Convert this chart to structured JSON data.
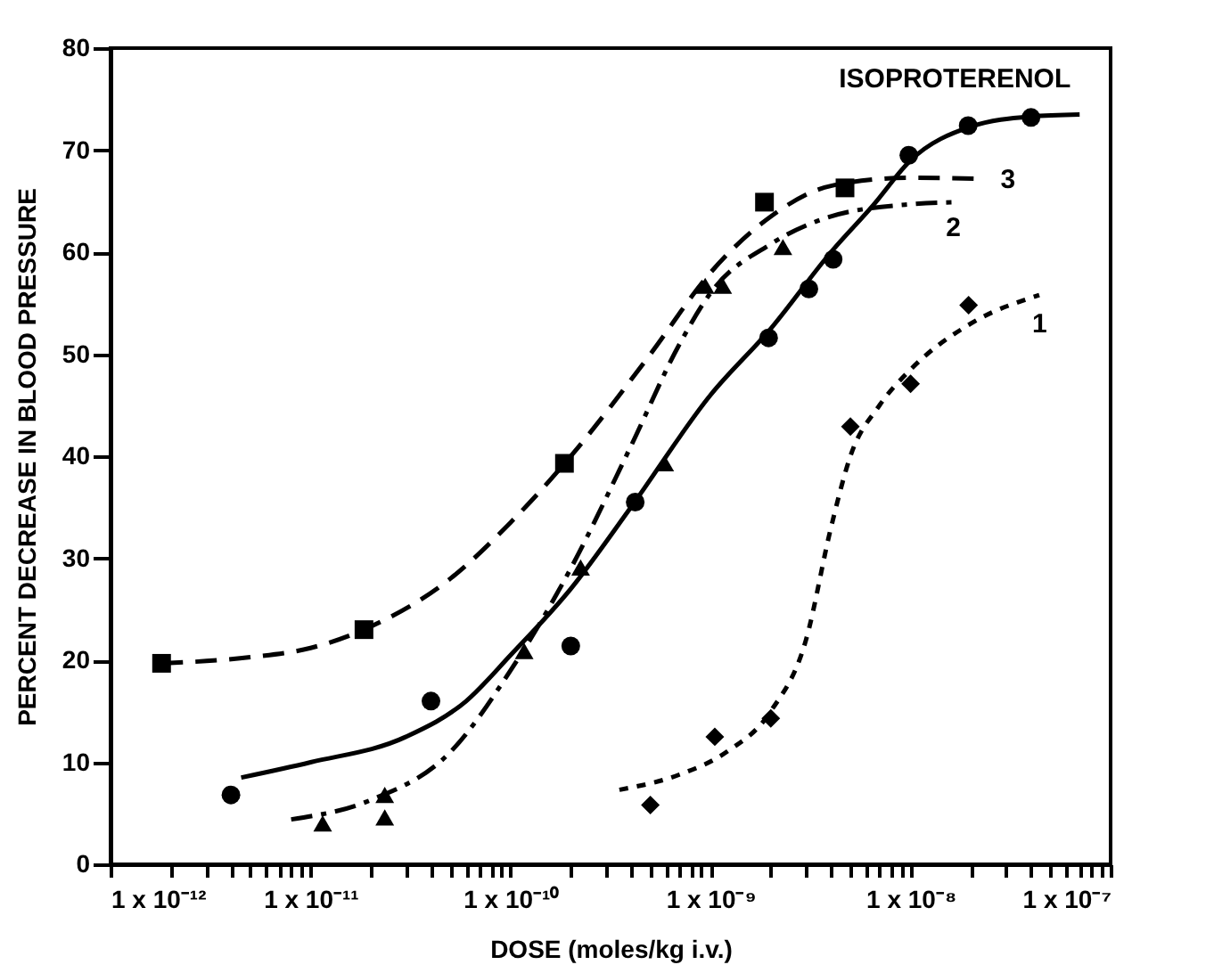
{
  "chart_data": {
    "type": "scatter",
    "xlabel": "DOSE (moles/kg i.v.)",
    "ylabel": "PERCENT DECREASE IN BLOOD PRESSURE",
    "log": "x",
    "xlim": [
      1e-12,
      1e-07
    ],
    "xticks": [
      {
        "value": 1e-12,
        "label": "1 x 10⁻¹²"
      },
      {
        "value": 1e-11,
        "label": "1 x 10⁻¹¹"
      },
      {
        "value": 1e-10,
        "label": "1 x 10⁻¹⁰"
      },
      {
        "value": 1e-09,
        "label": "1 x 10⁻⁹"
      },
      {
        "value": 1e-08,
        "label": "1 x 10⁻⁸"
      },
      {
        "value": 1e-07,
        "label": "1 x 10⁻⁷"
      },
      {
        "value": 2e-12,
        "label": null
      },
      {
        "value": 3e-12,
        "label": null
      },
      {
        "value": 4e-12,
        "label": null
      },
      {
        "value": 5e-12,
        "label": null
      },
      {
        "value": 6e-12,
        "label": null
      },
      {
        "value": 7e-12,
        "label": null
      },
      {
        "value": 8e-12,
        "label": null
      },
      {
        "value": 9e-12,
        "label": null
      },
      {
        "value": 2e-11,
        "label": null
      },
      {
        "value": 3e-11,
        "label": null
      },
      {
        "value": 4e-11,
        "label": null
      },
      {
        "value": 5e-11,
        "label": null
      },
      {
        "value": 6e-11,
        "label": null
      },
      {
        "value": 7e-11,
        "label": null
      },
      {
        "value": 8e-11,
        "label": null
      },
      {
        "value": 9e-11,
        "label": null
      },
      {
        "value": 2e-10,
        "label": null
      },
      {
        "value": 3e-10,
        "label": null
      },
      {
        "value": 4e-10,
        "label": null
      },
      {
        "value": 5e-10,
        "label": null
      },
      {
        "value": 6e-10,
        "label": null
      },
      {
        "value": 7e-10,
        "label": null
      },
      {
        "value": 8e-10,
        "label": null
      },
      {
        "value": 9e-10,
        "label": null
      },
      {
        "value": 2e-09,
        "label": null
      },
      {
        "value": 3e-09,
        "label": null
      },
      {
        "value": 4e-09,
        "label": null
      },
      {
        "value": 5e-09,
        "label": null
      },
      {
        "value": 6e-09,
        "label": null
      },
      {
        "value": 7e-09,
        "label": null
      },
      {
        "value": 8e-09,
        "label": null
      },
      {
        "value": 9e-09,
        "label": null
      },
      {
        "value": 2e-08,
        "label": null
      },
      {
        "value": 3e-08,
        "label": null
      },
      {
        "value": 4e-08,
        "label": null
      },
      {
        "value": 5e-08,
        "label": null
      },
      {
        "value": 6e-08,
        "label": null
      },
      {
        "value": 7e-08,
        "label": null
      },
      {
        "value": 8e-08,
        "label": null
      },
      {
        "value": 9e-08,
        "label": null
      }
    ],
    "ylim": [
      0,
      80
    ],
    "yticks": [
      0,
      10,
      20,
      30,
      40,
      50,
      60,
      70,
      80
    ],
    "series": [
      {
        "marker": "circle",
        "color": "#000000",
        "x": [
          4e-12,
          4e-11,
          2e-10,
          4.2e-10,
          1.95e-09,
          3.1e-09,
          4.1e-09,
          9.8e-09,
          1.94e-08,
          4e-08
        ],
        "values": [
          6.8,
          16,
          21.4,
          35.5,
          51.6,
          56.4,
          59.3,
          69.5,
          72.4,
          73.2
        ]
      },
      {
        "marker": "square",
        "color": "#000000",
        "x": [
          1.8e-12,
          1.85e-11,
          1.86e-10,
          1.86e-09,
          4.7e-09
        ],
        "values": [
          19.7,
          23,
          39.3,
          64.9,
          66.3
        ]
      },
      {
        "marker": "triangle",
        "color": "#000000",
        "x": [
          1.15e-11,
          2.35e-11,
          2.35e-11,
          1.17e-10,
          2.24e-10,
          5.9e-10,
          9.4e-10,
          1.15e-09,
          2.3e-09
        ],
        "values": [
          4,
          6.8,
          4.6,
          20.9,
          29.1,
          39.3,
          56.7,
          56.7,
          60.5
        ]
      },
      {
        "marker": "diamond",
        "color": "#000000",
        "x": [
          5e-10,
          1.05e-09,
          2e-09,
          5e-09,
          1e-08,
          1.95e-08
        ],
        "values": [
          5.8,
          12.5,
          14.3,
          42.9,
          47.1,
          54.8
        ]
      },
      {
        "type": "line",
        "name": "ISOPROTERENOL",
        "line_style": "solid",
        "color": "#000000",
        "x": [
          4.5e-12,
          1e-11,
          3e-11,
          6e-11,
          1e-10,
          2e-10,
          4e-10,
          1e-09,
          2e-09,
          4e-09,
          6.5e-09,
          1e-08,
          2e-08,
          4e-08,
          7e-08
        ],
        "values": [
          8.5,
          10,
          12.5,
          16,
          20.5,
          27,
          35,
          46,
          52.5,
          60,
          64.6,
          69,
          72.3,
          73.3,
          73.5
        ]
      },
      {
        "type": "line",
        "name": "3",
        "line_style": "dashed",
        "color": "#000000",
        "x": [
          1.8e-12,
          5e-12,
          1e-11,
          2e-11,
          5e-11,
          1e-10,
          2e-10,
          5e-10,
          1e-09,
          2e-09,
          4e-09,
          1e-08,
          2.2e-08
        ],
        "values": [
          19.7,
          20.3,
          21.2,
          23.3,
          28,
          33.5,
          40,
          50,
          58,
          63.5,
          66.5,
          67.3,
          67.2
        ]
      },
      {
        "type": "line",
        "name": "2",
        "line_style": "dashdot",
        "color": "#000000",
        "x": [
          8e-12,
          2e-11,
          5e-11,
          1e-10,
          2e-10,
          4e-10,
          7e-10,
          1e-09,
          2e-09,
          4e-09,
          1e-08,
          1.7e-08
        ],
        "values": [
          4.4,
          6.3,
          11,
          19,
          29,
          41,
          51,
          56,
          60.8,
          63.5,
          64.7,
          64.9
        ]
      },
      {
        "type": "line",
        "name": "1",
        "line_style": "dotted",
        "color": "#000000",
        "x": [
          3.5e-10,
          7e-10,
          1.2e-09,
          2e-09,
          3e-09,
          4e-09,
          5e-09,
          7e-09,
          1e-08,
          2e-08,
          4.4e-08
        ],
        "values": [
          7.3,
          8.8,
          11,
          15,
          22,
          33,
          40,
          45,
          48.5,
          53,
          55.8
        ]
      }
    ]
  }
}
